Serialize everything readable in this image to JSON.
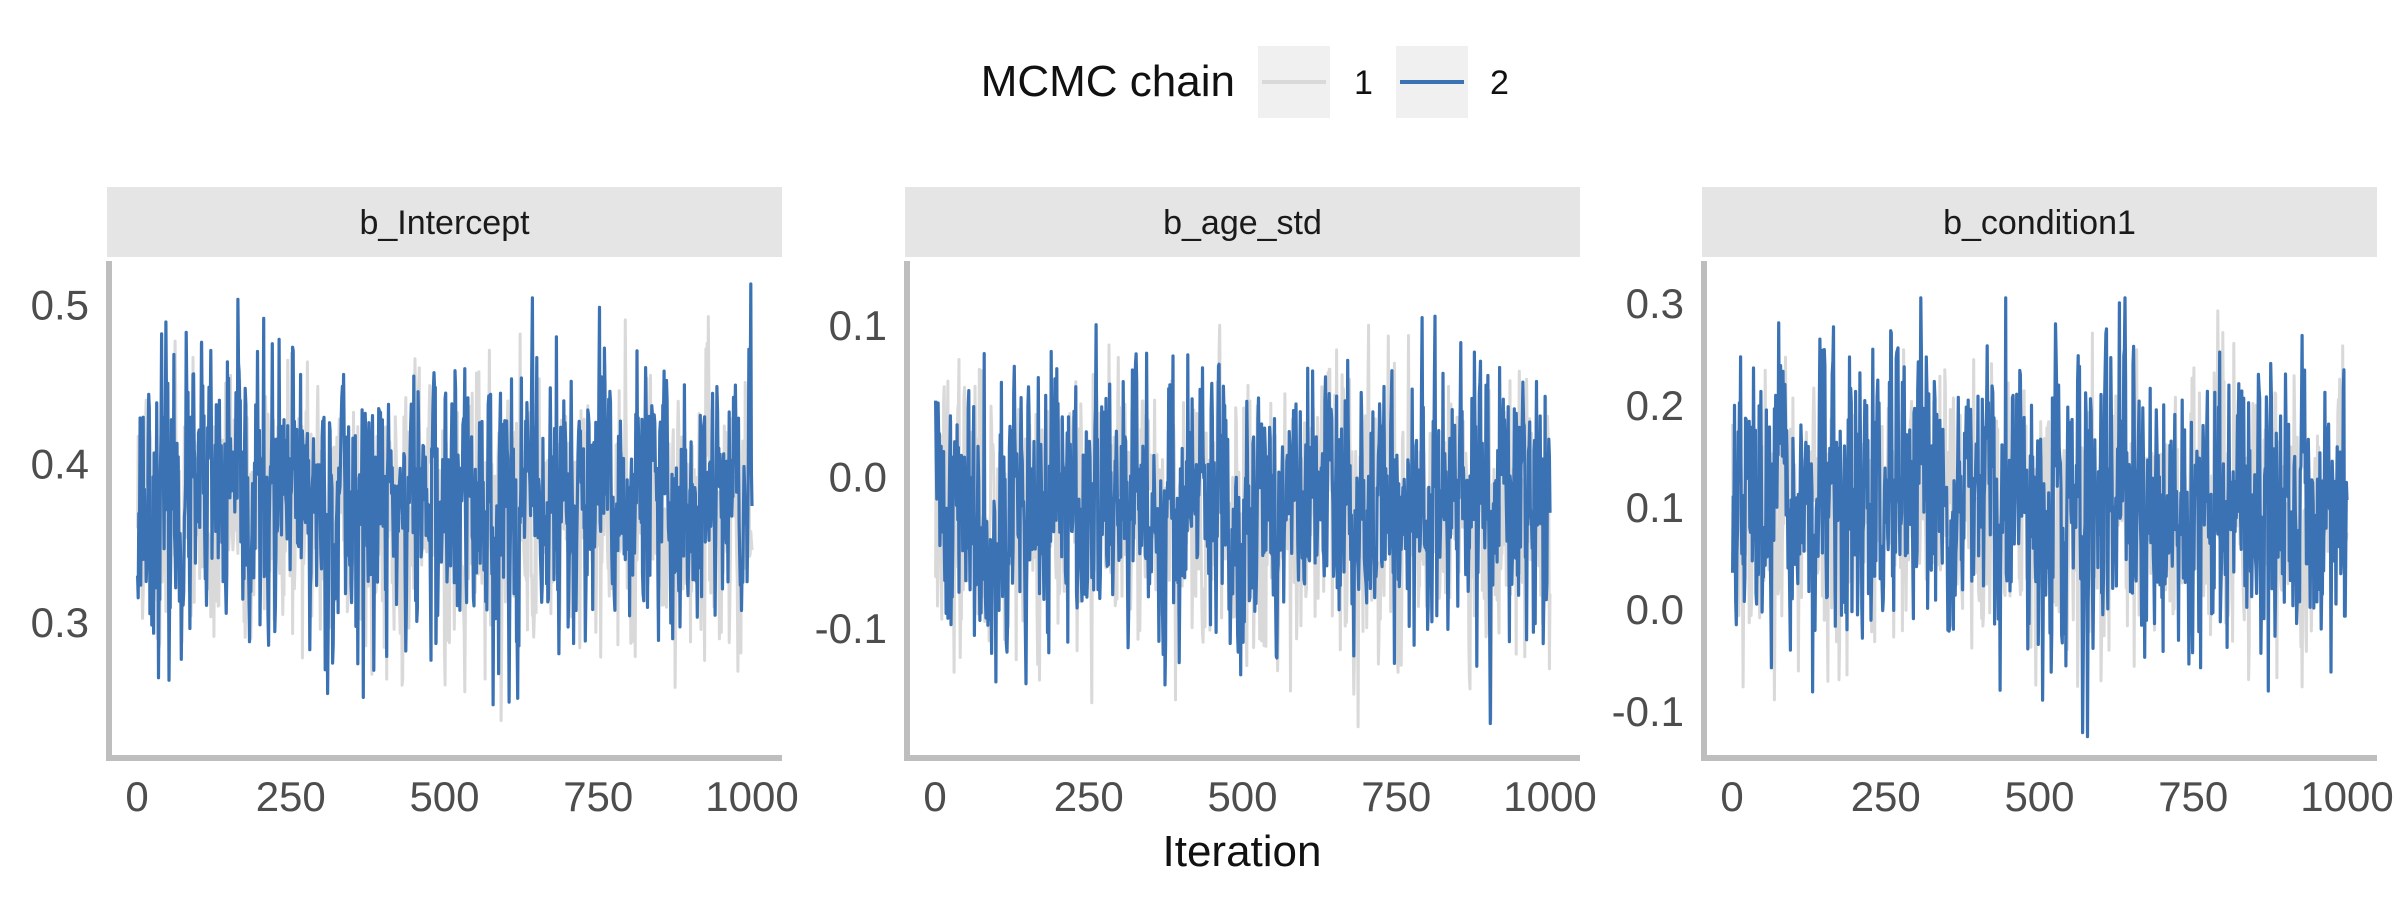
{
  "chart_data": {
    "type": "line",
    "xlabel": "Iteration",
    "legend": {
      "title": "MCMC chain",
      "placement": "top",
      "entries": [
        {
          "label": "1",
          "color": "#d9d9d9"
        },
        {
          "label": "2",
          "color": "#3b72b4"
        }
      ]
    },
    "panels": [
      {
        "title": "b_Intercept",
        "xlim": [
          0,
          1000
        ],
        "ylim": [
          0.215,
          0.53
        ],
        "xticks": [
          {
            "value": 0,
            "label": "0"
          },
          {
            "value": 250,
            "label": "250"
          },
          {
            "value": 500,
            "label": "500"
          },
          {
            "value": 750,
            "label": "750"
          },
          {
            "value": 1000,
            "label": "1000"
          }
        ],
        "yticks": [
          {
            "value": 0.3,
            "label": "0.3"
          },
          {
            "value": 0.4,
            "label": "0.4"
          },
          {
            "value": 0.5,
            "label": "0.5"
          }
        ],
        "series": [
          {
            "name": "1",
            "mean": 0.37,
            "sd": 0.042,
            "min": 0.238,
            "max": 0.498,
            "seed": 11
          },
          {
            "name": "2",
            "mean": 0.375,
            "sd": 0.044,
            "min": 0.226,
            "max": 0.513,
            "seed": 23
          }
        ]
      },
      {
        "title": "b_age_std",
        "xlim": [
          0,
          1000
        ],
        "ylim": [
          -0.185,
          0.145
        ],
        "xticks": [
          {
            "value": 0,
            "label": "0"
          },
          {
            "value": 250,
            "label": "250"
          },
          {
            "value": 500,
            "label": "500"
          },
          {
            "value": 750,
            "label": "750"
          },
          {
            "value": 1000,
            "label": "1000"
          }
        ],
        "yticks": [
          {
            "value": -0.1,
            "label": "-0.1"
          },
          {
            "value": 0.0,
            "label": "0.0"
          },
          {
            "value": 0.1,
            "label": "0.1"
          }
        ],
        "series": [
          {
            "name": "1",
            "mean": -0.02,
            "sd": 0.045,
            "min": -0.165,
            "max": 0.1,
            "seed": 37
          },
          {
            "name": "2",
            "mean": -0.02,
            "sd": 0.045,
            "min": -0.17,
            "max": 0.13,
            "seed": 41
          }
        ]
      },
      {
        "title": "b_condition1",
        "xlim": [
          0,
          1000
        ],
        "ylim": [
          -0.145,
          0.345
        ],
        "xticks": [
          {
            "value": 0,
            "label": "0"
          },
          {
            "value": 250,
            "label": "250"
          },
          {
            "value": 500,
            "label": "500"
          },
          {
            "value": 750,
            "label": "750"
          },
          {
            "value": 1000,
            "label": "1000"
          }
        ],
        "yticks": [
          {
            "value": -0.1,
            "label": "-0.1"
          },
          {
            "value": 0.0,
            "label": "0.0"
          },
          {
            "value": 0.1,
            "label": "0.1"
          },
          {
            "value": 0.2,
            "label": "0.2"
          },
          {
            "value": 0.3,
            "label": "0.3"
          }
        ],
        "series": [
          {
            "name": "1",
            "mean": 0.095,
            "sd": 0.065,
            "min": -0.125,
            "max": 0.32,
            "seed": 53
          },
          {
            "name": "2",
            "mean": 0.1,
            "sd": 0.068,
            "min": -0.125,
            "max": 0.305,
            "seed": 67
          }
        ]
      }
    ]
  }
}
